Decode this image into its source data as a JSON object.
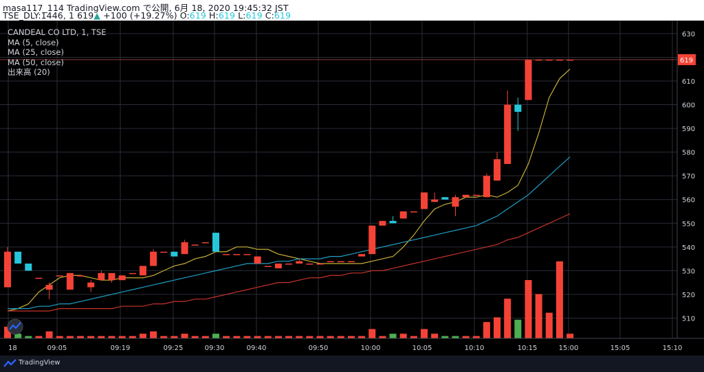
{
  "header": {
    "line1": "masa117_114 TradingView.com で公開, 6月 18, 2020 19:45:32 JST",
    "symbol_prefix": "TSE_DLY:1446, 1 619",
    "arrow": "▲",
    "change": "+100 (+19.27%)",
    "o_label": "O:",
    "o_value": "619",
    "h_label": "H:",
    "h_value": "619",
    "l_label": "L:",
    "l_value": "619",
    "c_label": "C:",
    "c_value": "619"
  },
  "legend": {
    "title": "CANDEAL CO LTD, 1, TSE",
    "ma5": "MA (5, close)",
    "ma25": "MA (25, close)",
    "ma50": "MA (50, close)",
    "volume": "出来高 (20)"
  },
  "footer": {
    "brand": "TradingView"
  },
  "colors": {
    "background": "#000000",
    "grid": "#2a2e39",
    "text": "#d1d4dc",
    "candle_up": "#f44336",
    "candle_down": "#26c6da",
    "vol_up": "#f44336",
    "vol_down": "#4caf50",
    "ma5": "#c9b037",
    "ma25": "#1f9fc4",
    "ma50": "#c8332b",
    "price_line": "#8e3a3a",
    "last_price_bg": "#f44336"
  },
  "chart_data": {
    "type": "candlestick",
    "interval": "1 minute",
    "ylim": [
      500,
      632
    ],
    "price_ticks": [
      630,
      620,
      610,
      600,
      590,
      580,
      570,
      560,
      550,
      540,
      530,
      520,
      510
    ],
    "last_price": 619,
    "time_labels": [
      "18",
      "09:05",
      "09:19",
      "09:25",
      "09:30",
      "09:40",
      "09:50",
      "10:00",
      "10:05",
      "10:10",
      "10:15",
      "15:00",
      "15:05",
      "15:10"
    ],
    "candles": [
      {
        "o": 523,
        "h": 540,
        "l": 523,
        "c": 538
      },
      {
        "o": 538,
        "h": 538,
        "l": 533,
        "c": 533
      },
      {
        "o": 533,
        "h": 533,
        "l": 530,
        "c": 530
      },
      {
        "o": 527,
        "h": 527,
        "l": 527,
        "c": 527
      },
      {
        "o": 522,
        "h": 525,
        "l": 518,
        "c": 524
      },
      {
        "o": 528,
        "h": 528,
        "l": 528,
        "c": 528
      },
      {
        "o": 522,
        "h": 529,
        "l": 522,
        "c": 529
      },
      {
        "o": 528,
        "h": 528,
        "l": 528,
        "c": 528
      },
      {
        "o": 523,
        "h": 526,
        "l": 521,
        "c": 525
      },
      {
        "o": 526,
        "h": 530,
        "l": 526,
        "c": 529
      },
      {
        "o": 526,
        "h": 529,
        "l": 525,
        "c": 529
      },
      {
        "o": 526,
        "h": 528,
        "l": 526,
        "c": 528
      },
      {
        "o": 529,
        "h": 529,
        "l": 529,
        "c": 529
      },
      {
        "o": 528,
        "h": 532,
        "l": 528,
        "c": 532
      },
      {
        "o": 532,
        "h": 539,
        "l": 532,
        "c": 538
      },
      {
        "o": 538,
        "h": 538,
        "l": 538,
        "c": 538
      },
      {
        "o": 538,
        "h": 538,
        "l": 536,
        "c": 536
      },
      {
        "o": 537,
        "h": 543,
        "l": 537,
        "c": 542
      },
      {
        "o": 541,
        "h": 541,
        "l": 541,
        "c": 541
      },
      {
        "o": 542,
        "h": 542,
        "l": 542,
        "c": 542
      },
      {
        "o": 546,
        "h": 546,
        "l": 538,
        "c": 538
      },
      {
        "o": 537,
        "h": 537,
        "l": 537,
        "c": 537
      },
      {
        "o": 537,
        "h": 537,
        "l": 537,
        "c": 537
      },
      {
        "o": 537,
        "h": 537,
        "l": 537,
        "c": 537
      },
      {
        "o": 533,
        "h": 536,
        "l": 533,
        "c": 536
      },
      {
        "o": 532,
        "h": 532,
        "l": 532,
        "c": 532
      },
      {
        "o": 531,
        "h": 533,
        "l": 531,
        "c": 533
      },
      {
        "o": 533,
        "h": 533,
        "l": 533,
        "c": 533
      },
      {
        "o": 533,
        "h": 535,
        "l": 533,
        "c": 534
      },
      {
        "o": 533,
        "h": 533,
        "l": 533,
        "c": 533
      },
      {
        "o": 533,
        "h": 533,
        "l": 533,
        "c": 533
      },
      {
        "o": 534,
        "h": 534,
        "l": 534,
        "c": 534
      },
      {
        "o": 534,
        "h": 534,
        "l": 534,
        "c": 534
      },
      {
        "o": 534,
        "h": 534,
        "l": 534,
        "c": 534
      },
      {
        "o": 536,
        "h": 537,
        "l": 536,
        "c": 537
      },
      {
        "o": 537,
        "h": 549,
        "l": 537,
        "c": 549
      },
      {
        "o": 549,
        "h": 551,
        "l": 549,
        "c": 551
      },
      {
        "o": 551,
        "h": 553,
        "l": 550,
        "c": 550
      },
      {
        "o": 552,
        "h": 555,
        "l": 552,
        "c": 555
      },
      {
        "o": 555,
        "h": 555,
        "l": 555,
        "c": 555
      },
      {
        "o": 556,
        "h": 563,
        "l": 556,
        "c": 563
      },
      {
        "o": 559,
        "h": 563,
        "l": 559,
        "c": 560
      },
      {
        "o": 561,
        "h": 561,
        "l": 560,
        "c": 560
      },
      {
        "o": 557,
        "h": 562,
        "l": 553,
        "c": 561
      },
      {
        "o": 561,
        "h": 562,
        "l": 561,
        "c": 562
      },
      {
        "o": 562,
        "h": 562,
        "l": 562,
        "c": 562
      },
      {
        "o": 561,
        "h": 571,
        "l": 561,
        "c": 570
      },
      {
        "o": 568,
        "h": 580,
        "l": 568,
        "c": 577
      },
      {
        "o": 575,
        "h": 606,
        "l": 575,
        "c": 600
      },
      {
        "o": 600,
        "h": 603,
        "l": 589,
        "c": 597
      },
      {
        "o": 602,
        "h": 619,
        "l": 602,
        "c": 619
      },
      {
        "o": 619,
        "h": 619,
        "l": 619,
        "c": 619
      },
      {
        "o": 619,
        "h": 619,
        "l": 619,
        "c": 619
      },
      {
        "o": 619,
        "h": 619,
        "l": 619,
        "c": 619
      },
      {
        "o": 619,
        "h": 619,
        "l": 619,
        "c": 619
      }
    ],
    "volume": [
      {
        "v": 5,
        "up": true
      },
      {
        "v": 2,
        "up": false
      },
      {
        "v": 1,
        "up": false
      },
      {
        "v": 1,
        "up": true
      },
      {
        "v": 3,
        "up": true
      },
      {
        "v": 1,
        "up": true
      },
      {
        "v": 1,
        "up": true
      },
      {
        "v": 1,
        "up": true
      },
      {
        "v": 1,
        "up": true
      },
      {
        "v": 1,
        "up": true
      },
      {
        "v": 1,
        "up": true
      },
      {
        "v": 1,
        "up": true
      },
      {
        "v": 1,
        "up": true
      },
      {
        "v": 2,
        "up": true
      },
      {
        "v": 3,
        "up": true
      },
      {
        "v": 1,
        "up": true
      },
      {
        "v": 1,
        "up": true
      },
      {
        "v": 2,
        "up": true
      },
      {
        "v": 1,
        "up": true
      },
      {
        "v": 1,
        "up": true
      },
      {
        "v": 2,
        "up": false
      },
      {
        "v": 1,
        "up": true
      },
      {
        "v": 1,
        "up": true
      },
      {
        "v": 1,
        "up": true
      },
      {
        "v": 1,
        "up": true
      },
      {
        "v": 1,
        "up": true
      },
      {
        "v": 1,
        "up": true
      },
      {
        "v": 1,
        "up": true
      },
      {
        "v": 1,
        "up": true
      },
      {
        "v": 1,
        "up": true
      },
      {
        "v": 1,
        "up": true
      },
      {
        "v": 1,
        "up": true
      },
      {
        "v": 1,
        "up": true
      },
      {
        "v": 1,
        "up": true
      },
      {
        "v": 1,
        "up": true
      },
      {
        "v": 4,
        "up": true
      },
      {
        "v": 1,
        "up": true
      },
      {
        "v": 2,
        "up": false
      },
      {
        "v": 2,
        "up": true
      },
      {
        "v": 1,
        "up": true
      },
      {
        "v": 4,
        "up": true
      },
      {
        "v": 2,
        "up": true
      },
      {
        "v": 1,
        "up": false
      },
      {
        "v": 1,
        "up": false
      },
      {
        "v": 1,
        "up": true
      },
      {
        "v": 1,
        "up": true
      },
      {
        "v": 7,
        "up": true
      },
      {
        "v": 9,
        "up": true
      },
      {
        "v": 17,
        "up": true
      },
      {
        "v": 8,
        "up": false
      },
      {
        "v": 25,
        "up": true
      },
      {
        "v": 19,
        "up": true
      },
      {
        "v": 11,
        "up": true
      },
      {
        "v": 33,
        "up": true
      },
      {
        "v": 2,
        "up": true
      }
    ],
    "ma_series": [
      {
        "name": "MA (5, close)",
        "values": [
          513,
          514,
          516,
          521,
          524,
          527,
          528,
          528,
          527,
          526,
          526,
          527,
          527,
          527,
          528,
          530,
          532,
          533,
          535,
          536,
          538,
          538,
          540,
          540,
          539,
          539,
          537,
          536,
          535,
          534,
          533,
          533,
          533,
          533,
          533,
          534,
          535,
          536,
          540,
          545,
          551,
          556,
          558,
          559,
          561,
          561,
          562,
          561,
          563,
          566,
          575,
          588,
          603,
          611,
          615
        ]
      },
      {
        "name": "MA (25, close)",
        "values": [
          514,
          514,
          514,
          515,
          515,
          516,
          516,
          517,
          518,
          519,
          520,
          521,
          522,
          523,
          524,
          525,
          526,
          527,
          528,
          529,
          530,
          531,
          532,
          533,
          533,
          533,
          534,
          534,
          535,
          535,
          535,
          536,
          536,
          537,
          538,
          539,
          540,
          541,
          542,
          543,
          544,
          545,
          546,
          547,
          548,
          549,
          551,
          553,
          556,
          559,
          562,
          566,
          570,
          574,
          578
        ]
      },
      {
        "name": "MA (50, close)",
        "values": [
          513,
          513,
          513,
          513,
          513,
          514,
          514,
          514,
          514,
          514,
          514,
          515,
          515,
          515,
          516,
          516,
          517,
          517,
          518,
          518,
          519,
          520,
          521,
          522,
          523,
          524,
          525,
          525,
          526,
          527,
          527,
          528,
          528,
          529,
          529,
          530,
          530,
          531,
          532,
          533,
          534,
          535,
          536,
          537,
          538,
          539,
          540,
          541,
          543,
          544,
          546,
          548,
          550,
          552,
          554
        ]
      }
    ]
  }
}
